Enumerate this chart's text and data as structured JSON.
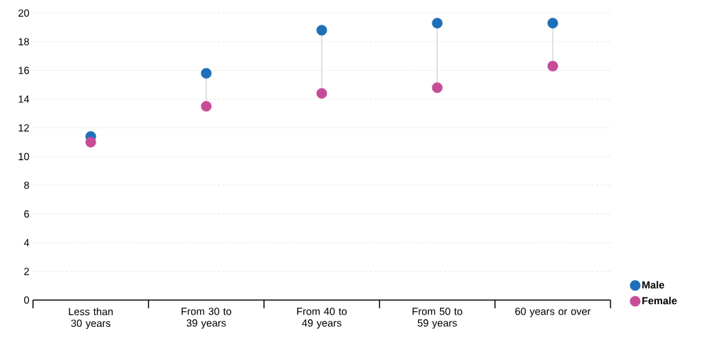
{
  "chart_data": {
    "type": "scatter",
    "categories": [
      "Less than 30 years",
      "From 30 to 39 years",
      "From 40 to 49 years",
      "From 50 to 59 years",
      "60 years or over"
    ],
    "series": [
      {
        "name": "Male",
        "color": "#1f6fb8",
        "values": [
          11.4,
          15.8,
          18.8,
          19.3,
          19.3
        ]
      },
      {
        "name": "Female",
        "color": "#c64c98",
        "values": [
          11.0,
          13.5,
          14.4,
          14.8,
          16.3
        ]
      }
    ],
    "ylim": [
      0,
      20
    ],
    "yticks": [
      0,
      2,
      4,
      6,
      8,
      10,
      12,
      14,
      16,
      18,
      20
    ],
    "grid": "y",
    "legend": "bottom right",
    "marker": "circle"
  }
}
